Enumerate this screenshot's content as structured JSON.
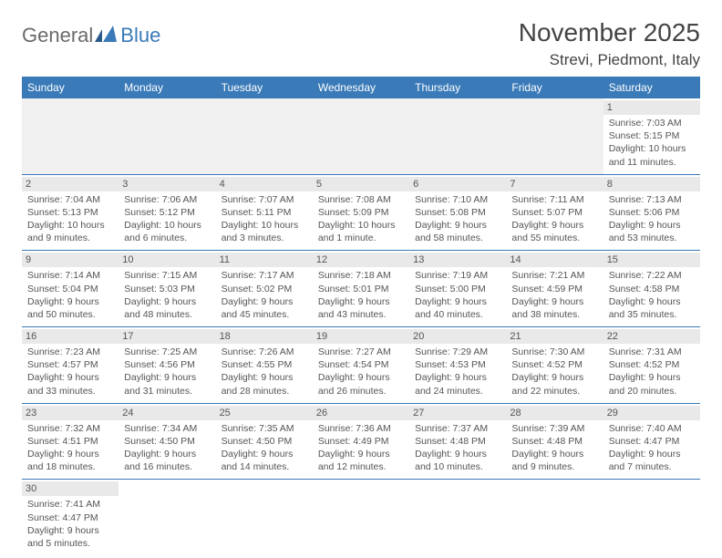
{
  "brand": {
    "name1": "General",
    "name2": "Blue"
  },
  "title": "November 2025",
  "location": "Strevi, Piedmont, Italy",
  "colors": {
    "header_bg": "#3a7ab8",
    "header_text": "#ffffff",
    "daynum_bg": "#e9e9e9",
    "empty_bg": "#f0f0f0",
    "border": "#3a7ab8",
    "body_text": "#555555",
    "logo_gray": "#6a6a6a",
    "logo_blue": "#3a7ab8"
  },
  "columns": [
    "Sunday",
    "Monday",
    "Tuesday",
    "Wednesday",
    "Thursday",
    "Friday",
    "Saturday"
  ],
  "weeks": [
    [
      null,
      null,
      null,
      null,
      null,
      null,
      {
        "n": "1",
        "sr": "7:03 AM",
        "ss": "5:15 PM",
        "dl": "10 hours and 11 minutes."
      }
    ],
    [
      {
        "n": "2",
        "sr": "7:04 AM",
        "ss": "5:13 PM",
        "dl": "10 hours and 9 minutes."
      },
      {
        "n": "3",
        "sr": "7:06 AM",
        "ss": "5:12 PM",
        "dl": "10 hours and 6 minutes."
      },
      {
        "n": "4",
        "sr": "7:07 AM",
        "ss": "5:11 PM",
        "dl": "10 hours and 3 minutes."
      },
      {
        "n": "5",
        "sr": "7:08 AM",
        "ss": "5:09 PM",
        "dl": "10 hours and 1 minute."
      },
      {
        "n": "6",
        "sr": "7:10 AM",
        "ss": "5:08 PM",
        "dl": "9 hours and 58 minutes."
      },
      {
        "n": "7",
        "sr": "7:11 AM",
        "ss": "5:07 PM",
        "dl": "9 hours and 55 minutes."
      },
      {
        "n": "8",
        "sr": "7:13 AM",
        "ss": "5:06 PM",
        "dl": "9 hours and 53 minutes."
      }
    ],
    [
      {
        "n": "9",
        "sr": "7:14 AM",
        "ss": "5:04 PM",
        "dl": "9 hours and 50 minutes."
      },
      {
        "n": "10",
        "sr": "7:15 AM",
        "ss": "5:03 PM",
        "dl": "9 hours and 48 minutes."
      },
      {
        "n": "11",
        "sr": "7:17 AM",
        "ss": "5:02 PM",
        "dl": "9 hours and 45 minutes."
      },
      {
        "n": "12",
        "sr": "7:18 AM",
        "ss": "5:01 PM",
        "dl": "9 hours and 43 minutes."
      },
      {
        "n": "13",
        "sr": "7:19 AM",
        "ss": "5:00 PM",
        "dl": "9 hours and 40 minutes."
      },
      {
        "n": "14",
        "sr": "7:21 AM",
        "ss": "4:59 PM",
        "dl": "9 hours and 38 minutes."
      },
      {
        "n": "15",
        "sr": "7:22 AM",
        "ss": "4:58 PM",
        "dl": "9 hours and 35 minutes."
      }
    ],
    [
      {
        "n": "16",
        "sr": "7:23 AM",
        "ss": "4:57 PM",
        "dl": "9 hours and 33 minutes."
      },
      {
        "n": "17",
        "sr": "7:25 AM",
        "ss": "4:56 PM",
        "dl": "9 hours and 31 minutes."
      },
      {
        "n": "18",
        "sr": "7:26 AM",
        "ss": "4:55 PM",
        "dl": "9 hours and 28 minutes."
      },
      {
        "n": "19",
        "sr": "7:27 AM",
        "ss": "4:54 PM",
        "dl": "9 hours and 26 minutes."
      },
      {
        "n": "20",
        "sr": "7:29 AM",
        "ss": "4:53 PM",
        "dl": "9 hours and 24 minutes."
      },
      {
        "n": "21",
        "sr": "7:30 AM",
        "ss": "4:52 PM",
        "dl": "9 hours and 22 minutes."
      },
      {
        "n": "22",
        "sr": "7:31 AM",
        "ss": "4:52 PM",
        "dl": "9 hours and 20 minutes."
      }
    ],
    [
      {
        "n": "23",
        "sr": "7:32 AM",
        "ss": "4:51 PM",
        "dl": "9 hours and 18 minutes."
      },
      {
        "n": "24",
        "sr": "7:34 AM",
        "ss": "4:50 PM",
        "dl": "9 hours and 16 minutes."
      },
      {
        "n": "25",
        "sr": "7:35 AM",
        "ss": "4:50 PM",
        "dl": "9 hours and 14 minutes."
      },
      {
        "n": "26",
        "sr": "7:36 AM",
        "ss": "4:49 PM",
        "dl": "9 hours and 12 minutes."
      },
      {
        "n": "27",
        "sr": "7:37 AM",
        "ss": "4:48 PM",
        "dl": "9 hours and 10 minutes."
      },
      {
        "n": "28",
        "sr": "7:39 AM",
        "ss": "4:48 PM",
        "dl": "9 hours and 9 minutes."
      },
      {
        "n": "29",
        "sr": "7:40 AM",
        "ss": "4:47 PM",
        "dl": "9 hours and 7 minutes."
      }
    ],
    [
      {
        "n": "30",
        "sr": "7:41 AM",
        "ss": "4:47 PM",
        "dl": "9 hours and 5 minutes."
      },
      null,
      null,
      null,
      null,
      null,
      null
    ]
  ],
  "labels": {
    "sunrise": "Sunrise: ",
    "sunset": "Sunset: ",
    "daylight": "Daylight: "
  }
}
